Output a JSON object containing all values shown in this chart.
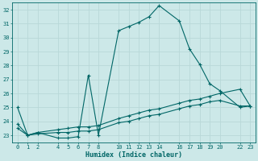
{
  "xlabel": "Humidex (Indice chaleur)",
  "bg_color": "#cce8e8",
  "grid_color": "#d4eded",
  "line_color": "#006666",
  "xlim": [
    -0.5,
    23.5
  ],
  "ylim": [
    22.5,
    32.5
  ],
  "xticks": [
    0,
    1,
    2,
    4,
    5,
    6,
    7,
    8,
    10,
    11,
    12,
    13,
    14,
    16,
    17,
    18,
    19,
    20,
    22,
    23
  ],
  "yticks": [
    23,
    24,
    25,
    26,
    27,
    28,
    29,
    30,
    31,
    32
  ],
  "series1_x": [
    0,
    1,
    2,
    4,
    5,
    6,
    7,
    8,
    10,
    11,
    12,
    13,
    14,
    16,
    17,
    18,
    19,
    20,
    22,
    23
  ],
  "series1_y": [
    25.0,
    23.0,
    23.2,
    22.8,
    22.8,
    22.9,
    27.3,
    23.0,
    30.5,
    30.8,
    31.1,
    31.5,
    32.3,
    31.2,
    29.2,
    28.1,
    26.7,
    26.2,
    25.0,
    25.1
  ],
  "series2_x": [
    0,
    1,
    2,
    4,
    5,
    6,
    7,
    8,
    10,
    11,
    12,
    13,
    14,
    16,
    17,
    18,
    19,
    20,
    22,
    23
  ],
  "series2_y": [
    23.8,
    23.0,
    23.2,
    23.4,
    23.5,
    23.6,
    23.6,
    23.7,
    24.2,
    24.4,
    24.6,
    24.8,
    24.9,
    25.3,
    25.5,
    25.6,
    25.8,
    26.0,
    26.3,
    25.1
  ],
  "series3_x": [
    0,
    1,
    2,
    4,
    5,
    6,
    7,
    8,
    10,
    11,
    12,
    13,
    14,
    16,
    17,
    18,
    19,
    20,
    22,
    23
  ],
  "series3_y": [
    23.5,
    23.0,
    23.1,
    23.2,
    23.2,
    23.3,
    23.3,
    23.4,
    23.9,
    24.0,
    24.2,
    24.4,
    24.5,
    24.9,
    25.1,
    25.2,
    25.4,
    25.5,
    25.1,
    25.1
  ]
}
